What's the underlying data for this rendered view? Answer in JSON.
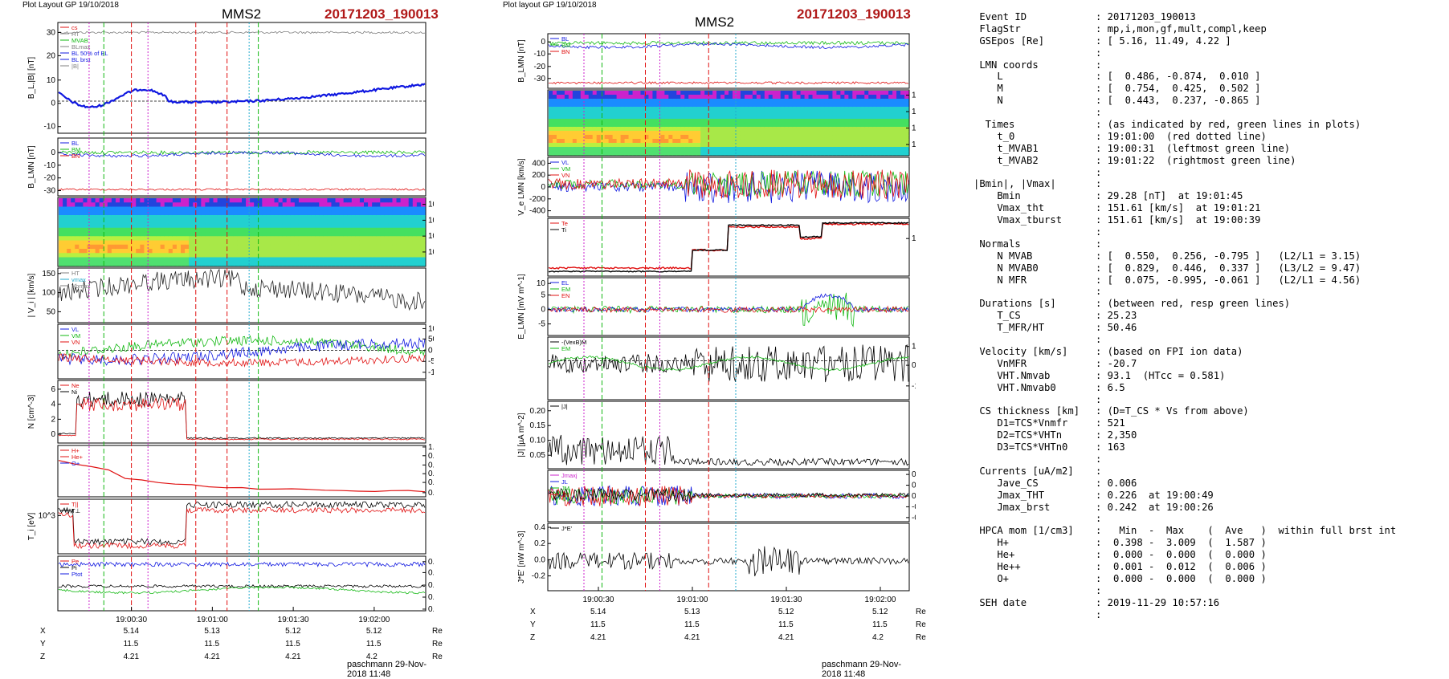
{
  "left": {
    "header": "Plot Layout GP 19/10/2018",
    "title": "MMS2",
    "event": "20171203_190013",
    "footer": "paschmann 29-Nov-2018 11:48",
    "panels": [
      {
        "ylabel": "B_L,|B| [nT]",
        "ticks": [
          "30",
          "20",
          "10",
          "0",
          "-10"
        ],
        "legend": [
          "cs",
          "HT",
          "MVAB",
          "BLmax",
          "BL 50% of BL",
          "BL brst",
          "|B|"
        ]
      },
      {
        "ylabel": "B_LMN [nT]",
        "ticks": [
          "0",
          "-10",
          "-20",
          "-30"
        ],
        "legend": [
          "BL",
          "BM",
          "BN"
        ]
      },
      {
        "ylabel": "Energy (eV)",
        "ticks": [
          "10^4",
          "10^3",
          "10^2",
          "10^1"
        ]
      },
      {
        "ylabel": "| V_i | [km/s]",
        "ticks": [
          "150",
          "100",
          "50"
        ],
        "legend": [
          "HT",
          "vmax",
          "Vbmax"
        ]
      },
      {
        "ylabel": "V_i LMN [km/s]",
        "ticks": [
          "100",
          "50",
          "0",
          "-50",
          "-100"
        ],
        "legend": [
          "VL",
          "VM",
          "VN"
        ]
      },
      {
        "ylabel": "N [cm^-3]",
        "ticks": [
          "6",
          "4",
          "2",
          "0"
        ],
        "legend": [
          "Ne",
          "Ni"
        ]
      },
      {
        "ylabel": "N_i [cm^-3] (x10^-2)",
        "ticks": [
          "1.0",
          "0.8",
          "0.6",
          "0.4",
          "0.2",
          "0.0"
        ],
        "legend": [
          "H+",
          "He+",
          "O+"
        ]
      },
      {
        "ylabel": "T_i [eV]",
        "ticks": [
          "10^3"
        ],
        "legend": [
          "T||",
          "T⊥"
        ]
      },
      {
        "ylabel": "P [nPa]",
        "ticks": [
          "0.8",
          "0.6",
          "0.4",
          "0.2",
          "0.0"
        ],
        "legend": [
          "Pe",
          "Pi",
          "Ptot"
        ]
      }
    ],
    "xticks": [
      "19:00:30",
      "19:01:00",
      "19:01:30",
      "19:02:00"
    ],
    "coords": {
      "X": [
        "5.14",
        "5.13",
        "5.12",
        "5.12"
      ],
      "Y": [
        "11.5",
        "11.5",
        "11.5",
        "11.5"
      ],
      "Z": [
        "4.21",
        "4.21",
        "4.21",
        "4.2"
      ],
      "unit": "Re"
    }
  },
  "middle": {
    "header": "Plot layout GP 19/10/2018",
    "title": "MMS2",
    "event": "20171203_190013",
    "footer": "paschmann 29-Nov-2018 11:48",
    "panels": [
      {
        "ylabel": "B_LMN [nT]",
        "ticks": [
          "0",
          "-10",
          "-20",
          "-30"
        ],
        "legend": [
          "BL",
          "BM",
          "BN"
        ]
      },
      {
        "ylabel": "Energy (eV)",
        "ticks": [
          "10^4",
          "10^3",
          "10^2",
          "10^1"
        ]
      },
      {
        "ylabel": "V_e LMN [km/s]",
        "ticks": [
          "400",
          "200",
          "0",
          "-200",
          "-400"
        ],
        "legend": [
          "VL",
          "VM",
          "VN"
        ]
      },
      {
        "ylabel": "T_e [eV]",
        "ticks": [
          "10^2"
        ],
        "legend": [
          "Te",
          "Ti"
        ]
      },
      {
        "ylabel": "E_LMN [mV m^-1]",
        "ticks": [
          "10",
          "5",
          "0",
          "-5"
        ],
        "legend": [
          "EL",
          "EM",
          "EN"
        ]
      },
      {
        "ylabel": "E_M [mV m^-2]",
        "ticks": [
          "10",
          "0",
          "-10"
        ],
        "legend": [
          "-(VexB)M",
          "EM"
        ]
      },
      {
        "ylabel": "|J| [µA m^-2]",
        "ticks": [
          "0.20",
          "0.15",
          "0.10",
          "0.05"
        ],
        "legend": [
          "|J|"
        ]
      },
      {
        "ylabel": "J [µA m^-2]",
        "ticks": [
          "0.2",
          "0.1",
          "0.0",
          "-0.1",
          "-0.2"
        ],
        "legend": [
          "Jmaxj",
          "JL",
          "JM",
          "JN"
        ]
      },
      {
        "ylabel": "J*E' [nW m^-3]",
        "ticks": [
          "0.4",
          "0.2",
          "0.0",
          "-0.2"
        ],
        "legend": [
          "J*E'"
        ]
      }
    ],
    "xticks": [
      "19:00:30",
      "19:01:00",
      "19:01:30",
      "19:02:00"
    ],
    "coords": {
      "X": [
        "5.14",
        "5.13",
        "5.12",
        "5.12"
      ],
      "Y": [
        "11.5",
        "11.5",
        "11.5",
        "11.5"
      ],
      "Z": [
        "4.21",
        "4.21",
        "4.21",
        "4.2"
      ],
      "unit": "Re"
    }
  },
  "info": [
    {
      "k": " Event ID",
      "v": ": 20171203_190013"
    },
    {
      "k": " FlagStr",
      "v": ": mp,i,mon,gf,mult,compl,keep"
    },
    {
      "k": " GSEpos [Re]",
      "v": ": [ 5.16, 11.49, 4.22 ]"
    },
    {
      "k": "",
      "v": ":"
    },
    {
      "k": " LMN coords",
      "v": ":"
    },
    {
      "k": "    L",
      "v": ": [  0.486, -0.874,  0.010 ]"
    },
    {
      "k": "    M",
      "v": ": [  0.754,  0.425,  0.502 ]"
    },
    {
      "k": "    N",
      "v": ": [  0.443,  0.237, -0.865 ]"
    },
    {
      "k": "",
      "v": ":"
    },
    {
      "k": "  Times",
      "v": ": (as indicated by red, green lines in plots)"
    },
    {
      "k": "    t_0",
      "v": ": 19:01:00  (red dotted line)"
    },
    {
      "k": "    t_MVAB1",
      "v": ": 19:00:31  (leftmost green line)"
    },
    {
      "k": "    t_MVAB2",
      "v": ": 19:01:22  (rightmost green line)"
    },
    {
      "k": "",
      "v": ":"
    },
    {
      "k": "|Bmin|, |Vmax|",
      "v": ":"
    },
    {
      "k": "    Bmin",
      "v": ": 29.28 [nT]  at 19:01:45"
    },
    {
      "k": "    Vmax_tht",
      "v": ": 151.61 [km/s]  at 19:01:21"
    },
    {
      "k": "    Vmax_tburst",
      "v": ": 151.61 [km/s]  at 19:00:39"
    },
    {
      "k": "",
      "v": ":"
    },
    {
      "k": " Normals",
      "v": ":"
    },
    {
      "k": "    N MVAB",
      "v": ": [  0.550,  0.256, -0.795 ]   (L2/L1 = 3.15)"
    },
    {
      "k": "    N MVAB0",
      "v": ": [  0.829,  0.446,  0.337 ]   (L3/L2 = 9.47)"
    },
    {
      "k": "    N MFR",
      "v": ": [  0.075, -0.995, -0.061 ]   (L2/L1 = 4.56)"
    },
    {
      "k": "",
      "v": ":"
    },
    {
      "k": " Durations [s]",
      "v": ": (between red, resp green lines)"
    },
    {
      "k": "    T_CS",
      "v": ": 25.23"
    },
    {
      "k": "    T_MFR/HT",
      "v": ": 50.46"
    },
    {
      "k": "",
      "v": ":"
    },
    {
      "k": " Velocity [km/s]",
      "v": ": (based on FPI ion data)"
    },
    {
      "k": "    VnMFR",
      "v": ": -20.7"
    },
    {
      "k": "    VHT.Nmvab",
      "v": ": 93.1  (HTcc = 0.581)"
    },
    {
      "k": "    VHT.Nmvab0",
      "v": ": 6.5"
    },
    {
      "k": "",
      "v": ":"
    },
    {
      "k": " CS thickness [km]",
      "v": ": (D=T_CS * Vs from above)"
    },
    {
      "k": "    D1=TCS*Vnmfr",
      "v": ": 521"
    },
    {
      "k": "    D2=TCS*VHTn",
      "v": ": 2,350"
    },
    {
      "k": "    D3=TCS*VHTn0",
      "v": ": 163"
    },
    {
      "k": "",
      "v": ":"
    },
    {
      "k": " Currents [uA/m2]",
      "v": ":"
    },
    {
      "k": "    Jave_CS",
      "v": ": 0.006"
    },
    {
      "k": "    Jmax_THT",
      "v": ": 0.226  at 19:00:49"
    },
    {
      "k": "    Jmax_brst",
      "v": ": 0.242  at 19:00:26"
    },
    {
      "k": "",
      "v": ":"
    },
    {
      "k": " HPCA mom [1/cm3]",
      "v": ":   Min  -  Max    (  Ave   )  within full brst int"
    },
    {
      "k": "    H+",
      "v": ":  0.398 -  3.009  (  1.587 )"
    },
    {
      "k": "    He+",
      "v": ":  0.000 -  0.000  (  0.000 )"
    },
    {
      "k": "    He++",
      "v": ":  0.001 -  0.012  (  0.006 )"
    },
    {
      "k": "    O+",
      "v": ":  0.000 -  0.000  (  0.000 )"
    },
    {
      "k": "",
      "v": ":"
    },
    {
      "k": " SEH date",
      "v": ": 2019-11-29 10:57:16"
    },
    {
      "k": "",
      "v": ":"
    }
  ],
  "chart_data": [
    {
      "type": "line",
      "title": "MMS2",
      "subtitle": "20171203_190013",
      "x": [
        "19:00:30",
        "19:01:00",
        "19:01:30",
        "19:02:00"
      ],
      "series": [
        {
          "name": "|B|",
          "values": [
            30,
            30,
            30,
            30
          ]
        },
        {
          "name": "BL",
          "values": [
            -4,
            -4,
            5,
            2
          ]
        }
      ],
      "xlabel": "",
      "ylabel": "B_L,|B| [nT]",
      "ylim": [
        -12,
        35
      ]
    },
    {
      "type": "line",
      "title": "MMS2",
      "x": [
        "19:00:30",
        "19:01:00",
        "19:01:30",
        "19:02:00"
      ],
      "series": [
        {
          "name": "|J|",
          "values": [
            0.12,
            0.08,
            0.04,
            0.03
          ]
        }
      ],
      "ylabel": "|J| [µA m^-2]",
      "ylim": [
        0,
        0.24
      ]
    }
  ],
  "colors": {
    "event": "#b01818",
    "red": "#e01010",
    "green": "#12b812",
    "blue": "#1018e0",
    "magenta": "#cc22cc",
    "cyan": "#22aacc",
    "black": "#000000",
    "gray": "#808080"
  }
}
